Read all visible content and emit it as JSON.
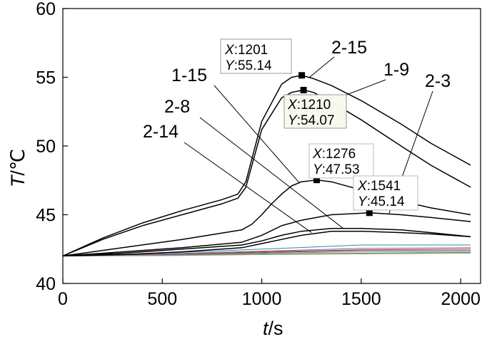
{
  "chart_data": {
    "type": "line",
    "xlabel_var": "t",
    "xlabel_unit": "/s",
    "ylabel_var": "T",
    "ylabel_unit": "/℃",
    "xlim": [
      0,
      2100
    ],
    "ylim": [
      40,
      60
    ],
    "xticks": [
      "0",
      "500",
      "1000",
      "1500",
      "2000"
    ],
    "yticks": [
      "40",
      "45",
      "50",
      "55",
      "60"
    ],
    "grid": false,
    "legend": "none",
    "series": [
      {
        "name": "2-15",
        "x": [
          0,
          200,
          400,
          600,
          800,
          880,
          920,
          1000,
          1100,
          1150,
          1201,
          1260,
          1350,
          1500,
          1700,
          1850,
          2050
        ],
        "y": [
          42.0,
          43.3,
          44.4,
          45.3,
          46.1,
          46.5,
          47.4,
          51.8,
          54.5,
          55.0,
          55.14,
          54.9,
          54.4,
          53.3,
          51.6,
          50.2,
          48.6
        ]
      },
      {
        "name": "1-9",
        "x": [
          0,
          200,
          400,
          600,
          800,
          880,
          920,
          1000,
          1100,
          1150,
          1210,
          1260,
          1350,
          1500,
          1700,
          1850,
          2050
        ],
        "y": [
          42.0,
          43.2,
          44.2,
          45.0,
          45.8,
          46.2,
          47.0,
          51.2,
          53.5,
          53.9,
          54.07,
          53.9,
          53.2,
          51.9,
          50.0,
          48.6,
          47.0
        ]
      },
      {
        "name": "1-15",
        "x": [
          0,
          300,
          600,
          900,
          950,
          1000,
          1050,
          1100,
          1150,
          1200,
          1276,
          1350,
          1500,
          1700,
          1850,
          2050
        ],
        "y": [
          42.0,
          42.6,
          43.2,
          43.9,
          44.3,
          45.0,
          45.8,
          46.5,
          47.1,
          47.4,
          47.53,
          47.4,
          46.8,
          46.0,
          45.5,
          45.0
        ]
      },
      {
        "name": "2-3",
        "x": [
          0,
          300,
          600,
          900,
          1000,
          1100,
          1200,
          1350,
          1541,
          1700,
          1850,
          2050
        ],
        "y": [
          42.0,
          42.3,
          42.6,
          43.0,
          43.5,
          44.2,
          44.6,
          45.0,
          45.14,
          45.0,
          44.8,
          44.5
        ]
      },
      {
        "name": "2-8",
        "x": [
          0,
          300,
          600,
          900,
          1000,
          1100,
          1200,
          1350,
          1500,
          1700,
          1850,
          2050
        ],
        "y": [
          42.0,
          42.2,
          42.5,
          42.8,
          43.1,
          43.5,
          43.8,
          44.0,
          44.0,
          43.9,
          43.7,
          43.4
        ]
      },
      {
        "name": "2-14",
        "x": [
          0,
          300,
          600,
          900,
          1000,
          1100,
          1200,
          1350,
          1500,
          1700,
          1850,
          2050
        ],
        "y": [
          42.0,
          42.1,
          42.3,
          42.6,
          42.9,
          43.2,
          43.5,
          43.8,
          43.8,
          43.7,
          43.6,
          43.4
        ]
      }
    ],
    "baseline_series": [
      {
        "color": "#2a8f8f",
        "x": [
          0,
          500,
          1000,
          1500,
          2050
        ],
        "y": [
          42.0,
          42.2,
          42.5,
          42.8,
          42.8
        ]
      },
      {
        "color": "#8a5fb0",
        "x": [
          0,
          500,
          1000,
          1500,
          2050
        ],
        "y": [
          42.0,
          42.15,
          42.35,
          42.55,
          42.6
        ]
      },
      {
        "color": "#c0392b",
        "x": [
          0,
          500,
          1000,
          1500,
          2050
        ],
        "y": [
          42.0,
          42.1,
          42.3,
          42.45,
          42.5
        ]
      },
      {
        "color": "#3060c0",
        "x": [
          0,
          500,
          1000,
          1500,
          2050
        ],
        "y": [
          42.0,
          42.08,
          42.25,
          42.4,
          42.4
        ]
      },
      {
        "color": "#d08030",
        "x": [
          0,
          500,
          1000,
          1500,
          2050
        ],
        "y": [
          42.0,
          42.05,
          42.2,
          42.3,
          42.3
        ]
      },
      {
        "color": "#3fa34d",
        "x": [
          0,
          500,
          1000,
          1500,
          2050
        ],
        "y": [
          42.0,
          42.03,
          42.15,
          42.2,
          42.25
        ]
      },
      {
        "color": "#999999",
        "x": [
          0,
          500,
          1000,
          1500,
          2050
        ],
        "y": [
          42.0,
          42.02,
          42.1,
          42.15,
          42.2
        ]
      }
    ],
    "datatips": [
      {
        "x": 1201,
        "y": 55.14,
        "x_label": "X",
        "x_text": ":1201",
        "y_label": "Y",
        "y_text": ":55.14"
      },
      {
        "x": 1210,
        "y": 54.07,
        "x_label": "X",
        "x_text": ":1210",
        "y_label": "Y",
        "y_text": ":54.07"
      },
      {
        "x": 1276,
        "y": 47.53,
        "x_label": "X",
        "x_text": ":1276",
        "y_label": "Y",
        "y_text": ":47.53"
      },
      {
        "x": 1541,
        "y": 45.14,
        "x_label": "X",
        "x_text": ":1541",
        "y_label": "Y",
        "y_text": ":45.14"
      }
    ],
    "callouts": [
      {
        "label": "2-15",
        "x": 1240,
        "y": 55.0
      },
      {
        "label": "1-9",
        "x": 1350,
        "y": 53.3
      },
      {
        "label": "2-3",
        "x": 1640,
        "y": 45.1
      },
      {
        "label": "1-15",
        "x": 1190,
        "y": 47.3
      },
      {
        "label": "2-8",
        "x": 1410,
        "y": 44.0
      },
      {
        "label": "2-14",
        "x": 1250,
        "y": 43.7
      }
    ]
  }
}
